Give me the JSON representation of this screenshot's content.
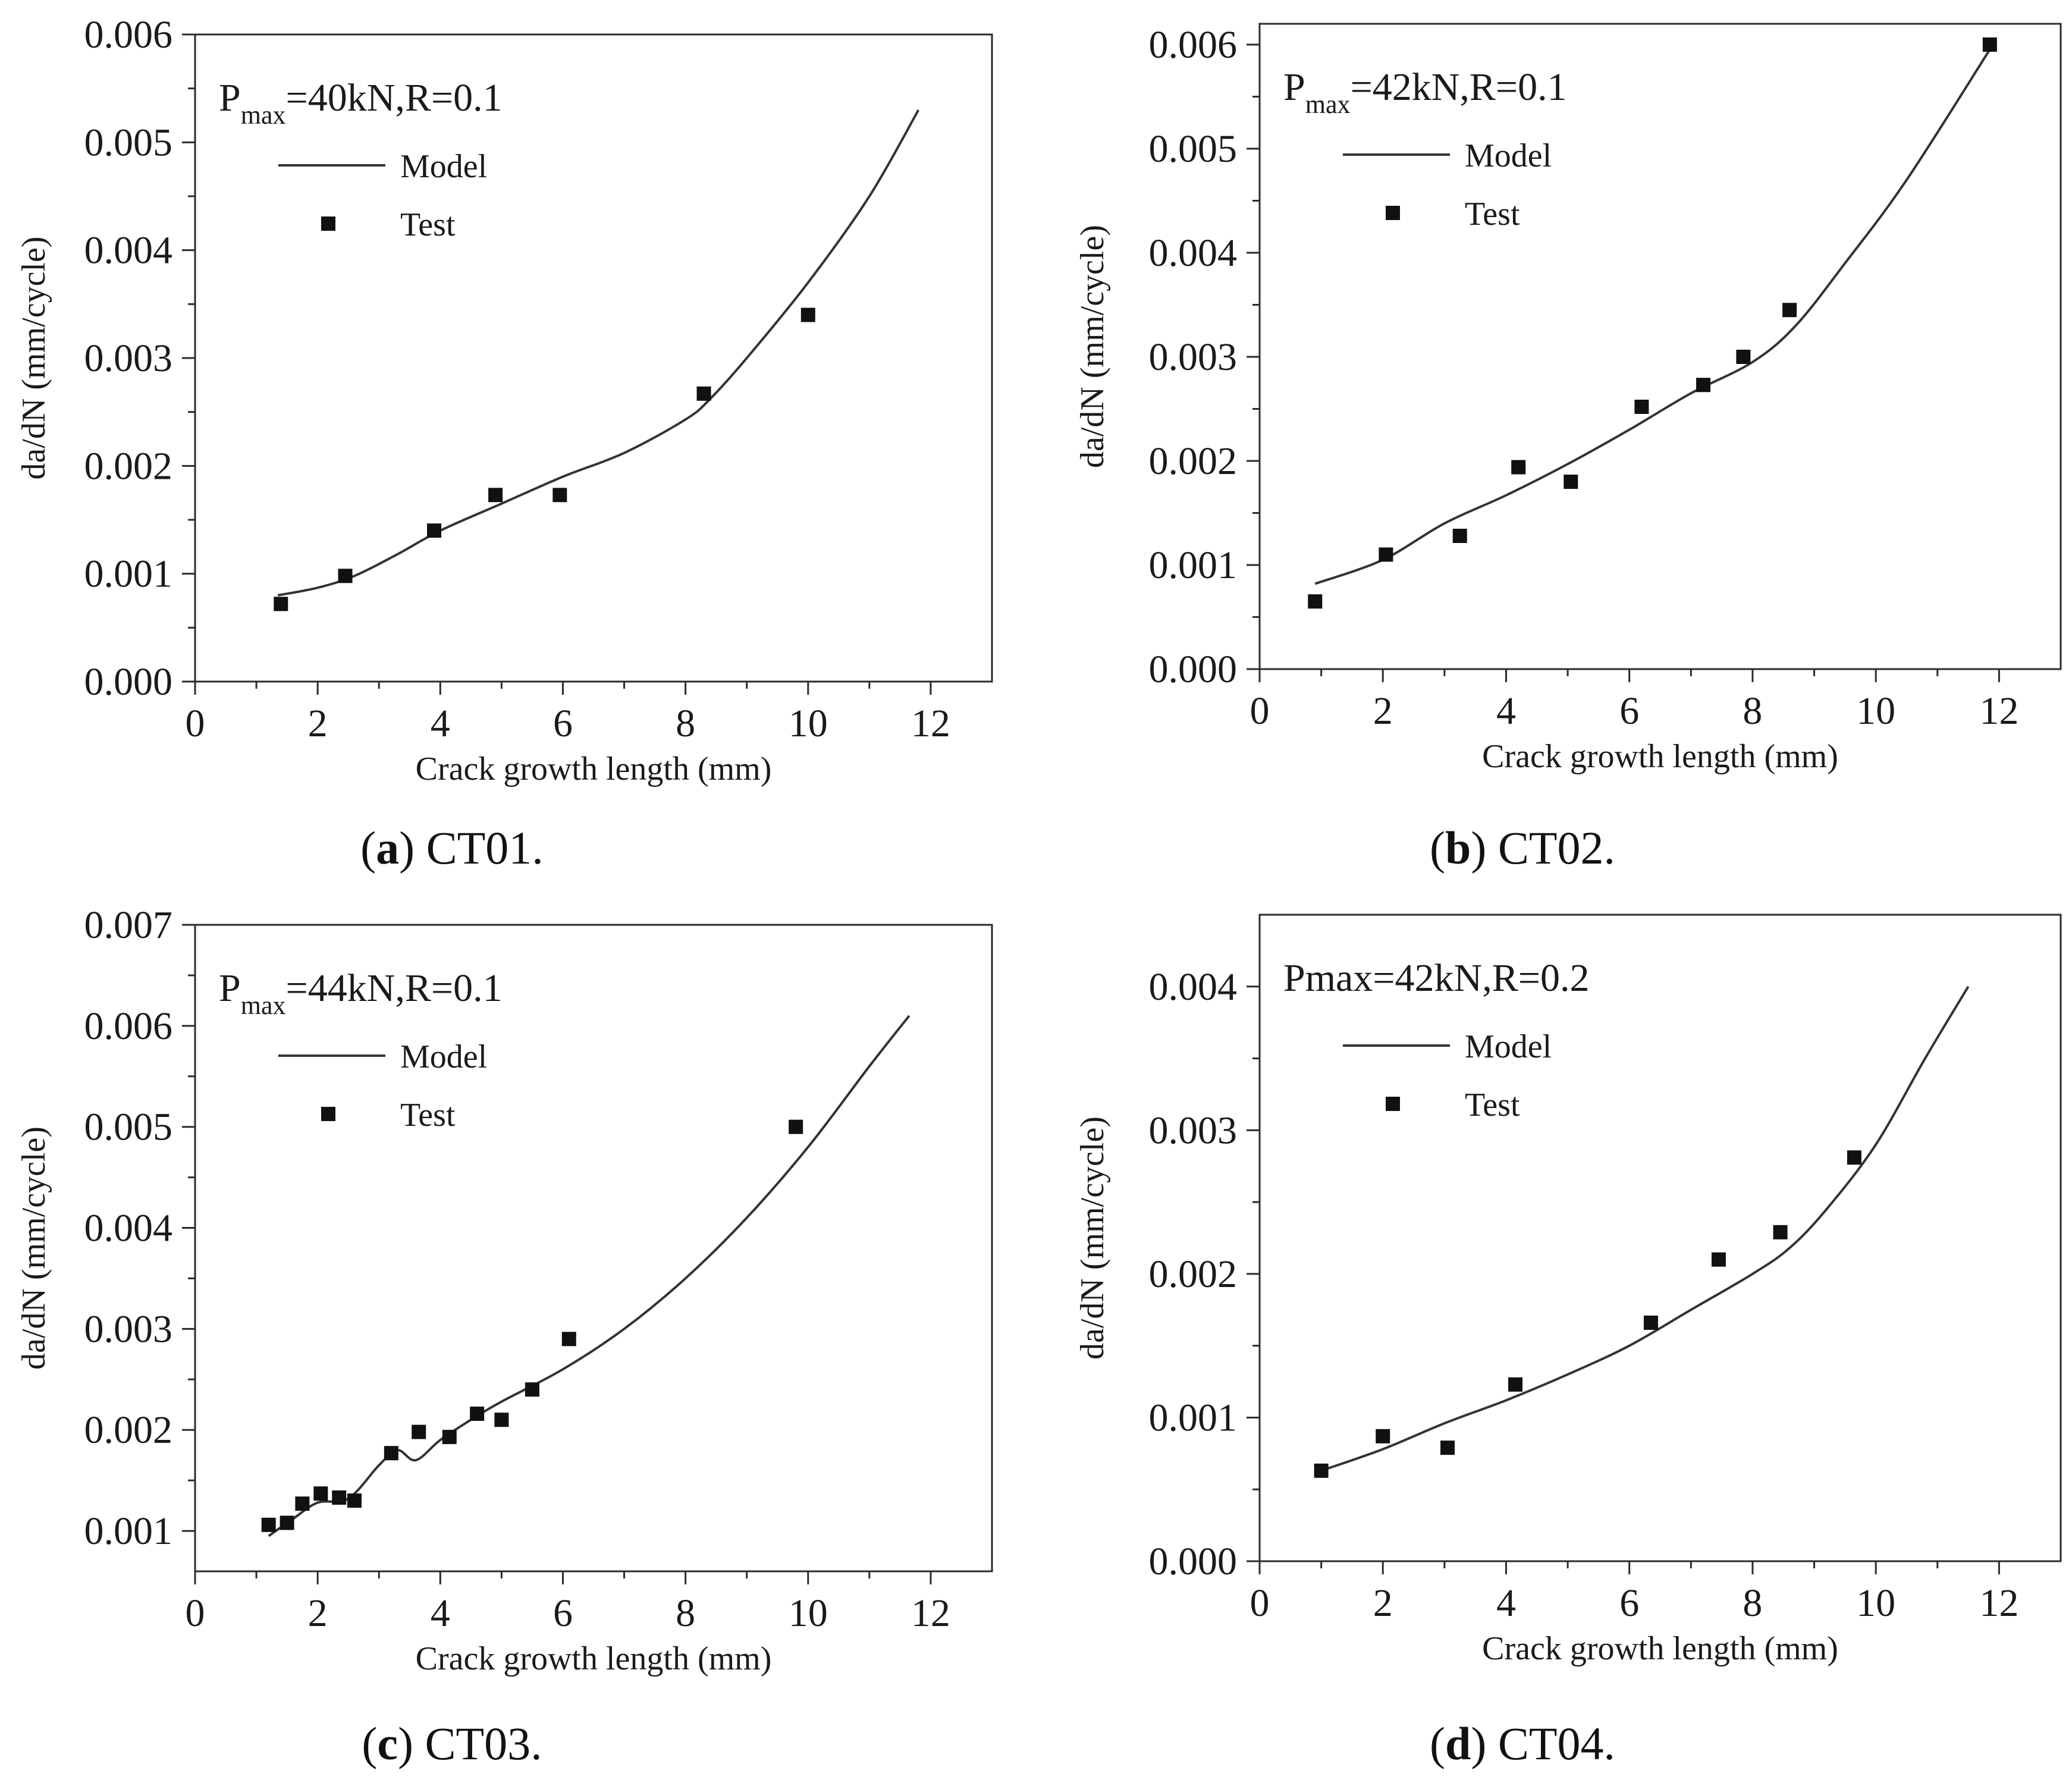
{
  "figure_title": "",
  "chart_data": [
    {
      "type": "scatter",
      "id": "a",
      "caption": {
        "open": "(",
        "letter": "a",
        "close": ")",
        "text": " CT01."
      },
      "condition": {
        "main": "P",
        "sub": "max",
        "rest": "=40kN,R=0.1"
      },
      "xlabel": "Crack growth length (mm)",
      "ylabel": "da/dN (mm/cycle)",
      "xlim": [
        0,
        13
      ],
      "ylim": [
        0,
        0.006
      ],
      "xticks": [
        0,
        2,
        4,
        6,
        8,
        10,
        12
      ],
      "xtick_labels": [
        "0",
        "2",
        "4",
        "6",
        "8",
        "10",
        "12"
      ],
      "yticks": [
        0,
        0.001,
        0.002,
        0.003,
        0.004,
        0.005,
        0.006
      ],
      "ytick_labels": [
        "0.000",
        "0.001",
        "0.002",
        "0.003",
        "0.004",
        "0.005",
        "0.006"
      ],
      "grid": false,
      "legend": {
        "position": "top-left",
        "model_label": "Model",
        "test_label": "Test"
      },
      "series": [
        {
          "name": "Model",
          "kind": "line",
          "x": [
            1.35,
            2.0,
            2.6,
            3.3,
            4.0,
            5.0,
            6.0,
            7.0,
            8.0,
            8.4,
            9.0,
            10.0,
            11.0,
            11.8
          ],
          "y": [
            0.0008,
            0.00087,
            0.00098,
            0.00118,
            0.0014,
            0.00165,
            0.0019,
            0.00212,
            0.00243,
            0.00262,
            0.003,
            0.0037,
            0.0045,
            0.0053
          ]
        },
        {
          "name": "Test",
          "kind": "points",
          "x": [
            1.4,
            2.45,
            3.9,
            4.9,
            5.95,
            8.3,
            10.0
          ],
          "y": [
            0.00072,
            0.00098,
            0.0014,
            0.00173,
            0.00173,
            0.00267,
            0.0034
          ]
        }
      ]
    },
    {
      "type": "scatter",
      "id": "b",
      "caption": {
        "open": "(",
        "letter": "b",
        "close": ")",
        "text": " CT02."
      },
      "condition": {
        "main": "P",
        "sub": "max",
        "rest": "=42kN,R=0.1"
      },
      "xlabel": "Crack growth length (mm)",
      "ylabel": "da/dN (mm/cycle)",
      "xlim": [
        0,
        13
      ],
      "ylim": [
        0,
        0.0062
      ],
      "xticks": [
        0,
        2,
        4,
        6,
        8,
        10,
        12
      ],
      "xtick_labels": [
        "0",
        "2",
        "4",
        "6",
        "8",
        "10",
        "12"
      ],
      "yticks": [
        0,
        0.001,
        0.002,
        0.003,
        0.004,
        0.005,
        0.006
      ],
      "ytick_labels": [
        "0.000",
        "0.001",
        "0.002",
        "0.003",
        "0.004",
        "0.005",
        "0.006"
      ],
      "grid": false,
      "legend": {
        "position": "top-left",
        "model_label": "Model",
        "test_label": "Test"
      },
      "series": [
        {
          "name": "Model",
          "kind": "line",
          "x": [
            0.9,
            2.0,
            3.0,
            4.0,
            5.0,
            6.0,
            7.0,
            8.0,
            8.7,
            9.5,
            10.5,
            11.9
          ],
          "y": [
            0.00082,
            0.00105,
            0.0014,
            0.00167,
            0.00197,
            0.0023,
            0.00265,
            0.00295,
            0.0033,
            0.0039,
            0.0047,
            0.006
          ]
        },
        {
          "name": "Test",
          "kind": "points",
          "x": [
            0.9,
            2.05,
            3.25,
            4.2,
            5.05,
            6.2,
            7.2,
            7.85,
            8.6,
            11.85
          ],
          "y": [
            0.00065,
            0.0011,
            0.00128,
            0.00194,
            0.0018,
            0.00252,
            0.00273,
            0.003,
            0.00345,
            0.006
          ]
        }
      ]
    },
    {
      "type": "scatter",
      "id": "c",
      "caption": {
        "open": "(",
        "letter": "c",
        "close": ")",
        "text": " CT03."
      },
      "condition": {
        "main": "P",
        "sub": "max",
        "rest": "=44kN,R=0.1"
      },
      "xlabel": "Crack growth length (mm)",
      "ylabel": "da/dN (mm/cycle)",
      "xlim": [
        0,
        13
      ],
      "ylim": [
        0.0006,
        0.007
      ],
      "xticks": [
        0,
        2,
        4,
        6,
        8,
        10,
        12
      ],
      "xtick_labels": [
        "0",
        "2",
        "4",
        "6",
        "8",
        "10",
        "12"
      ],
      "yticks": [
        0.001,
        0.002,
        0.003,
        0.004,
        0.005,
        0.006,
        0.007
      ],
      "ytick_labels": [
        "0.001",
        "0.002",
        "0.003",
        "0.004",
        "0.005",
        "0.006",
        "0.007"
      ],
      "grid": false,
      "legend": {
        "position": "top-left",
        "model_label": "Model",
        "test_label": "Test"
      },
      "series": [
        {
          "name": "Model",
          "kind": "line",
          "x": [
            1.2,
            1.6,
            2.0,
            2.5,
            3.0,
            3.3,
            3.6,
            4.0,
            4.5,
            5.0,
            6.0,
            7.0,
            8.0,
            9.0,
            10.0,
            11.0,
            11.65
          ],
          "y": [
            0.00095,
            0.00112,
            0.00128,
            0.00132,
            0.00165,
            0.0018,
            0.0017,
            0.0019,
            0.0021,
            0.00228,
            0.0026,
            0.003,
            0.0035,
            0.0041,
            0.0048,
            0.0056,
            0.0061
          ]
        },
        {
          "name": "Test",
          "kind": "points",
          "x": [
            1.2,
            1.5,
            1.75,
            2.05,
            2.35,
            2.6,
            3.2,
            3.65,
            4.15,
            4.6,
            5.0,
            5.5,
            6.1,
            9.8
          ],
          "y": [
            0.00106,
            0.00108,
            0.00127,
            0.00137,
            0.00133,
            0.0013,
            0.00177,
            0.00198,
            0.00193,
            0.00216,
            0.0021,
            0.0024,
            0.0029,
            0.005
          ]
        }
      ]
    },
    {
      "type": "scatter",
      "id": "d",
      "caption": {
        "open": "(",
        "letter": "d",
        "close": ")",
        "text": " CT04."
      },
      "condition": {
        "main": "Pmax=42kN,R=0.2",
        "sub": "",
        "rest": ""
      },
      "xlabel": "Crack growth length (mm)",
      "ylabel": "da/dN (mm/cycle)",
      "xlim": [
        0,
        13
      ],
      "ylim": [
        0,
        0.0045
      ],
      "xticks": [
        0,
        2,
        4,
        6,
        8,
        10,
        12
      ],
      "xtick_labels": [
        "0",
        "2",
        "4",
        "6",
        "8",
        "10",
        "12"
      ],
      "yticks": [
        0,
        0.001,
        0.002,
        0.003,
        0.004
      ],
      "ytick_labels": [
        "0.000",
        "0.001",
        "0.002",
        "0.003",
        "0.004"
      ],
      "grid": false,
      "legend": {
        "position": "top-left",
        "model_label": "Model",
        "test_label": "Test"
      },
      "series": [
        {
          "name": "Model",
          "kind": "line",
          "x": [
            1.0,
            2.0,
            3.0,
            4.0,
            5.0,
            6.0,
            7.0,
            8.0,
            8.6,
            9.2,
            10.0,
            10.8,
            11.5
          ],
          "y": [
            0.00063,
            0.00078,
            0.00096,
            0.00112,
            0.0013,
            0.0015,
            0.00175,
            0.002,
            0.00218,
            0.00245,
            0.0029,
            0.0035,
            0.004
          ]
        },
        {
          "name": "Test",
          "kind": "points",
          "x": [
            1.0,
            2.0,
            3.05,
            4.15,
            6.35,
            7.45,
            8.45,
            9.65
          ],
          "y": [
            0.00063,
            0.00087,
            0.00079,
            0.00123,
            0.00166,
            0.0021,
            0.00229,
            0.00281
          ]
        }
      ]
    }
  ]
}
